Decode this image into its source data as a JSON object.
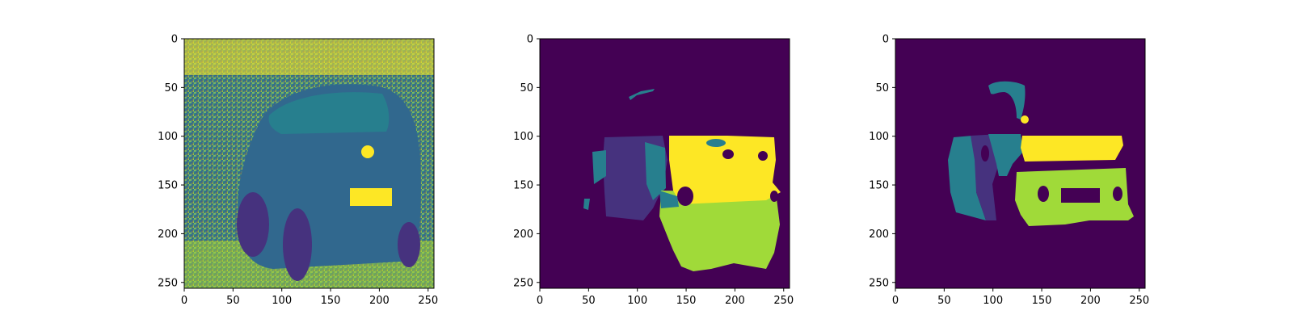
{
  "chart_data": [
    {
      "type": "heatmap",
      "content": "grayscale-photo-viridis",
      "xlim": [
        0,
        256
      ],
      "ylim": [
        256,
        0
      ],
      "xticks": [
        0,
        50,
        100,
        150,
        200,
        250
      ],
      "yticks": [
        0,
        50,
        100,
        150,
        200,
        250
      ],
      "xtick_labels": [
        "0",
        "50",
        "100",
        "150",
        "200",
        "250"
      ],
      "ytick_labels": [
        "0",
        "50",
        "100",
        "150",
        "200",
        "250"
      ],
      "colormap": "viridis"
    },
    {
      "type": "heatmap",
      "content": "segmentation-mask-prediction",
      "xlim": [
        0,
        256
      ],
      "ylim": [
        256,
        0
      ],
      "xticks": [
        0,
        50,
        100,
        150,
        200,
        250
      ],
      "yticks": [
        0,
        50,
        100,
        150,
        200,
        250
      ],
      "xtick_labels": [
        "0",
        "50",
        "100",
        "150",
        "200",
        "250"
      ],
      "ytick_labels": [
        "0",
        "50",
        "100",
        "150",
        "200",
        "250"
      ],
      "colormap": "viridis"
    },
    {
      "type": "heatmap",
      "content": "segmentation-mask-ground-truth",
      "xlim": [
        0,
        256
      ],
      "ylim": [
        256,
        0
      ],
      "xticks": [
        0,
        50,
        100,
        150,
        200,
        250
      ],
      "yticks": [
        0,
        50,
        100,
        150,
        200,
        250
      ],
      "xtick_labels": [
        "0",
        "50",
        "100",
        "150",
        "200",
        "250"
      ],
      "ytick_labels": [
        "0",
        "50",
        "100",
        "150",
        "200",
        "250"
      ],
      "colormap": "viridis"
    }
  ],
  "colors": {
    "background": "#440154",
    "class_1": "#46327e",
    "class_2": "#277f8e",
    "class_3": "#a0da39",
    "class_4": "#fde725",
    "photo_dark": "#31688e",
    "photo_mid": "#35b779",
    "photo_light": "#b5de2b"
  }
}
